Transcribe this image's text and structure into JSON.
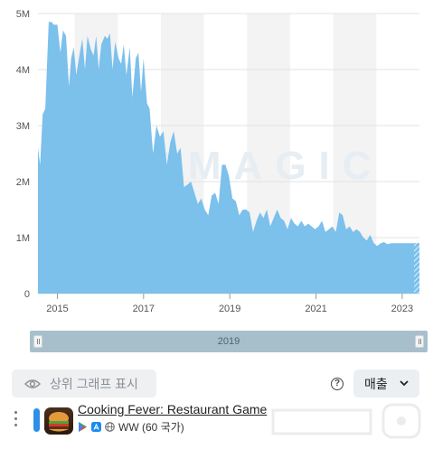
{
  "chart_data": {
    "type": "area",
    "series": [
      {
        "name": "Cooking Fever: Restaurant Game",
        "color": "#7cc0ec",
        "x": [
          2014.55,
          2014.6,
          2014.66,
          2014.72,
          2014.8,
          2014.86,
          2014.92,
          2015.0,
          2015.07,
          2015.13,
          2015.2,
          2015.27,
          2015.32,
          2015.38,
          2015.44,
          2015.52,
          2015.58,
          2015.64,
          2015.7,
          2015.78,
          2015.84,
          2015.9,
          2015.96,
          2016.02,
          2016.1,
          2016.16,
          2016.22,
          2016.28,
          2016.34,
          2016.42,
          2016.48,
          2016.54,
          2016.6,
          2016.68,
          2016.74,
          2016.82,
          2016.88,
          2016.94,
          2017.0,
          2017.08,
          2017.14,
          2017.22,
          2017.3,
          2017.38,
          2017.46,
          2017.54,
          2017.62,
          2017.7,
          2017.78,
          2017.86,
          2017.94,
          2018.02,
          2018.1,
          2018.18,
          2018.26,
          2018.34,
          2018.42,
          2018.5,
          2018.58,
          2018.66,
          2018.74,
          2018.82,
          2018.9,
          2018.98,
          2019.06,
          2019.14,
          2019.22,
          2019.3,
          2019.38,
          2019.46,
          2019.54,
          2019.62,
          2019.7,
          2019.78,
          2019.86,
          2019.94,
          2020.02,
          2020.1,
          2020.18,
          2020.26,
          2020.34,
          2020.42,
          2020.5,
          2020.58,
          2020.66,
          2020.74,
          2020.82,
          2020.9,
          2020.98,
          2021.06,
          2021.14,
          2021.22,
          2021.3,
          2021.38,
          2021.46,
          2021.54,
          2021.62,
          2021.7,
          2021.78,
          2021.86,
          2021.94,
          2022.02,
          2022.1,
          2022.18,
          2022.26,
          2022.34,
          2022.42,
          2022.5,
          2022.58,
          2022.66,
          2022.74,
          2022.82,
          2022.9,
          2022.98,
          2023.06,
          2023.14,
          2023.22,
          2023.3,
          2023.4
        ],
        "values": [
          2.6,
          2.3,
          3.2,
          3.3,
          4.85,
          4.85,
          4.8,
          4.8,
          4.3,
          4.7,
          4.6,
          3.7,
          4.2,
          4.4,
          3.9,
          4.3,
          4.55,
          4.0,
          4.6,
          4.35,
          4.25,
          4.6,
          4.0,
          4.45,
          4.6,
          4.55,
          4.65,
          4.0,
          4.5,
          4.2,
          4.1,
          4.45,
          3.9,
          4.4,
          3.5,
          4.2,
          4.3,
          3.6,
          4.2,
          3.4,
          3.3,
          2.5,
          3.0,
          2.8,
          2.9,
          2.3,
          2.7,
          2.9,
          2.5,
          2.6,
          1.9,
          1.95,
          2.0,
          1.8,
          1.6,
          1.7,
          1.5,
          1.4,
          1.75,
          1.8,
          1.6,
          2.3,
          2.3,
          2.1,
          1.7,
          1.65,
          1.4,
          1.5,
          1.5,
          1.45,
          1.1,
          1.3,
          1.45,
          1.35,
          1.5,
          1.2,
          1.35,
          1.5,
          1.35,
          1.3,
          1.15,
          1.35,
          1.25,
          1.2,
          1.3,
          1.2,
          1.25,
          1.2,
          1.15,
          1.2,
          1.3,
          1.1,
          1.15,
          1.2,
          1.1,
          1.45,
          1.4,
          1.15,
          1.2,
          1.1,
          1.15,
          1.1,
          1.0,
          0.95,
          1.05,
          0.9,
          0.85,
          0.9,
          0.92,
          0.88,
          0.9,
          0.9,
          0.9,
          0.9,
          0.9,
          0.9,
          0.9,
          0.9,
          0.9
        ]
      }
    ],
    "y_tick_labels": [
      "0",
      "1M",
      "2M",
      "3M",
      "4M",
      "5M"
    ],
    "x_tick_labels": [
      "2015",
      "2017",
      "2019",
      "2021",
      "2023"
    ],
    "xlim": [
      2014.55,
      2023.4
    ],
    "ylim": [
      0,
      5
    ],
    "grid": true,
    "watermark": "APPMAGIC"
  },
  "range_slider": {
    "label": "2019"
  },
  "controls": {
    "top_graph_label": "상위 그래프 표시",
    "help_symbol": "?",
    "metric_label": "매출"
  },
  "app": {
    "title": "Cooking Fever: Restaurant Game",
    "region": "WW (60 국가)"
  }
}
